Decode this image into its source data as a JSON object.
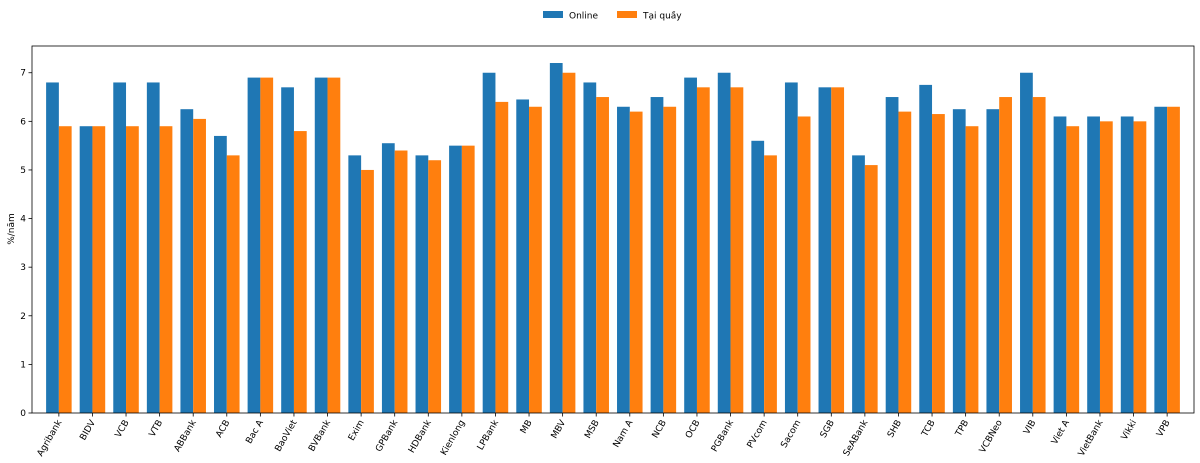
{
  "chart_data": {
    "type": "bar",
    "ylabel": "%/năm",
    "xlabel": "",
    "title": "",
    "ylim": [
      0,
      7.55
    ],
    "yticks": [
      0,
      1,
      2,
      3,
      4,
      5,
      6,
      7
    ],
    "grid": false,
    "legend_position": "top-center",
    "categories": [
      "Agribank",
      "BIDV",
      "VCB",
      "VTB",
      "ABBank",
      "ACB",
      "Bac A",
      "BaoViet",
      "BVBank",
      "Exim",
      "GPBank",
      "HDBank",
      "Kienlong",
      "LPBank",
      "MB",
      "MBV",
      "MSB",
      "Nam A",
      "NCB",
      "OCB",
      "PGBank",
      "PVcom",
      "Sacom",
      "SGB",
      "SeABank",
      "SHB",
      "TCB",
      "TPB",
      "VCBNeo",
      "VIB",
      "Viet A",
      "VietBank",
      "Vikki",
      "VPB"
    ],
    "series": [
      {
        "name": "Online",
        "color": "#1f77b4",
        "values": [
          6.8,
          5.9,
          6.8,
          6.8,
          6.25,
          5.7,
          6.9,
          6.7,
          6.9,
          5.3,
          5.55,
          5.3,
          5.5,
          7.0,
          6.45,
          7.2,
          6.8,
          6.3,
          6.5,
          6.9,
          7.0,
          5.6,
          6.8,
          6.7,
          5.3,
          6.5,
          6.75,
          6.25,
          6.25,
          7.0,
          6.1,
          6.1,
          6.1,
          6.3
        ]
      },
      {
        "name": "Tại quầy",
        "color": "#ff7f0e",
        "values": [
          5.9,
          5.9,
          5.9,
          5.9,
          6.05,
          5.3,
          6.9,
          5.8,
          6.9,
          5.0,
          5.4,
          5.2,
          5.5,
          6.4,
          6.3,
          7.0,
          6.5,
          6.2,
          6.3,
          6.7,
          6.7,
          5.3,
          6.1,
          6.7,
          5.1,
          6.2,
          6.15,
          5.9,
          6.5,
          6.5,
          5.9,
          6.0,
          6.0,
          6.3
        ]
      }
    ]
  }
}
